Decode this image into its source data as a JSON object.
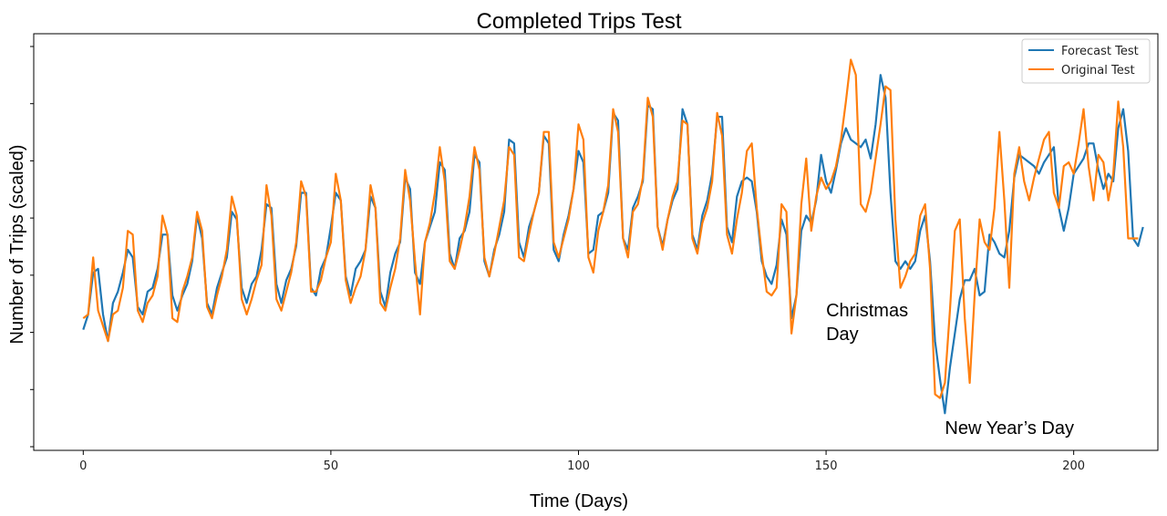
{
  "chart_data": {
    "type": "line",
    "title": "Completed Trips Test",
    "xlabel": "Time (Days)",
    "ylabel": "Number of Trips (scaled)",
    "xlim": [
      -10,
      217
    ],
    "ylim": [
      0,
      1
    ],
    "x_ticks": [
      0,
      50,
      100,
      150,
      200
    ],
    "y_ticks_labeled": false,
    "grid": false,
    "legend_position": "top-right",
    "series": [
      {
        "name": "Forecast Test",
        "color": "#1f77b4",
        "x_start": 0,
        "values": [
          0.26,
          0.3,
          0.41,
          0.42,
          0.3,
          0.23,
          0.33,
          0.36,
          0.41,
          0.47,
          0.45,
          0.32,
          0.3,
          0.36,
          0.37,
          0.42,
          0.51,
          0.51,
          0.35,
          0.31,
          0.35,
          0.38,
          0.44,
          0.56,
          0.5,
          0.33,
          0.3,
          0.37,
          0.41,
          0.45,
          0.57,
          0.55,
          0.37,
          0.33,
          0.38,
          0.4,
          0.47,
          0.59,
          0.58,
          0.38,
          0.33,
          0.39,
          0.42,
          0.48,
          0.62,
          0.62,
          0.37,
          0.35,
          0.42,
          0.45,
          0.53,
          0.62,
          0.6,
          0.4,
          0.35,
          0.42,
          0.44,
          0.47,
          0.61,
          0.58,
          0.36,
          0.32,
          0.41,
          0.46,
          0.49,
          0.66,
          0.63,
          0.41,
          0.38,
          0.49,
          0.53,
          0.57,
          0.7,
          0.68,
          0.46,
          0.42,
          0.5,
          0.52,
          0.57,
          0.72,
          0.7,
          0.44,
          0.4,
          0.47,
          0.51,
          0.57,
          0.76,
          0.75,
          0.49,
          0.45,
          0.53,
          0.57,
          0.62,
          0.77,
          0.75,
          0.47,
          0.44,
          0.51,
          0.56,
          0.63,
          0.73,
          0.7,
          0.46,
          0.47,
          0.56,
          0.57,
          0.62,
          0.83,
          0.81,
          0.5,
          0.47,
          0.58,
          0.61,
          0.65,
          0.85,
          0.84,
          0.53,
          0.48,
          0.55,
          0.6,
          0.63,
          0.84,
          0.8,
          0.51,
          0.47,
          0.56,
          0.6,
          0.67,
          0.82,
          0.82,
          0.53,
          0.49,
          0.61,
          0.65,
          0.66,
          0.65,
          0.57,
          0.44,
          0.4,
          0.38,
          0.43,
          0.55,
          0.51,
          0.29,
          0.35,
          0.52,
          0.56,
          0.54,
          0.6,
          0.72,
          0.65,
          0.62,
          0.68,
          0.75,
          0.79,
          0.76,
          0.75,
          0.74,
          0.76,
          0.71,
          0.8,
          0.93,
          0.87,
          0.62,
          0.44,
          0.42,
          0.44,
          0.42,
          0.44,
          0.52,
          0.56,
          0.44,
          0.23,
          0.13,
          0.04,
          0.16,
          0.25,
          0.34,
          0.39,
          0.39,
          0.42,
          0.35,
          0.36,
          0.51,
          0.49,
          0.46,
          0.45,
          0.52,
          0.66,
          0.72,
          0.71,
          0.7,
          0.69,
          0.67,
          0.7,
          0.72,
          0.74,
          0.58,
          0.52,
          0.58,
          0.67,
          0.69,
          0.71,
          0.75,
          0.75,
          0.68,
          0.63,
          0.67,
          0.65,
          0.79,
          0.84,
          0.73,
          0.5,
          0.48,
          0.53
        ]
      },
      {
        "name": "Original Test",
        "color": "#ff7f0e",
        "x_start": 0,
        "values": [
          0.29,
          0.3,
          0.45,
          0.31,
          0.27,
          0.23,
          0.3,
          0.31,
          0.37,
          0.52,
          0.51,
          0.31,
          0.28,
          0.33,
          0.35,
          0.4,
          0.56,
          0.51,
          0.29,
          0.28,
          0.36,
          0.4,
          0.45,
          0.57,
          0.52,
          0.32,
          0.29,
          0.35,
          0.4,
          0.47,
          0.61,
          0.56,
          0.34,
          0.3,
          0.34,
          0.39,
          0.43,
          0.64,
          0.56,
          0.34,
          0.31,
          0.36,
          0.41,
          0.49,
          0.65,
          0.61,
          0.36,
          0.36,
          0.39,
          0.45,
          0.49,
          0.67,
          0.6,
          0.39,
          0.33,
          0.37,
          0.4,
          0.47,
          0.64,
          0.58,
          0.33,
          0.31,
          0.37,
          0.42,
          0.5,
          0.68,
          0.6,
          0.44,
          0.3,
          0.49,
          0.54,
          0.62,
          0.74,
          0.65,
          0.44,
          0.42,
          0.47,
          0.53,
          0.61,
          0.74,
          0.68,
          0.45,
          0.4,
          0.46,
          0.53,
          0.6,
          0.74,
          0.72,
          0.45,
          0.44,
          0.51,
          0.57,
          0.62,
          0.78,
          0.78,
          0.49,
          0.45,
          0.5,
          0.55,
          0.63,
          0.8,
          0.76,
          0.45,
          0.41,
          0.52,
          0.57,
          0.64,
          0.84,
          0.78,
          0.5,
          0.45,
          0.57,
          0.59,
          0.66,
          0.87,
          0.82,
          0.53,
          0.47,
          0.55,
          0.61,
          0.65,
          0.81,
          0.8,
          0.5,
          0.46,
          0.54,
          0.58,
          0.65,
          0.83,
          0.77,
          0.51,
          0.46,
          0.55,
          0.62,
          0.73,
          0.75,
          0.58,
          0.46,
          0.36,
          0.35,
          0.37,
          0.59,
          0.57,
          0.25,
          0.35,
          0.59,
          0.71,
          0.52,
          0.61,
          0.66,
          0.63,
          0.65,
          0.69,
          0.76,
          0.86,
          0.97,
          0.93,
          0.59,
          0.57,
          0.62,
          0.71,
          0.8,
          0.9,
          0.89,
          0.55,
          0.37,
          0.4,
          0.44,
          0.46,
          0.56,
          0.59,
          0.42,
          0.09,
          0.08,
          0.12,
          0.31,
          0.52,
          0.55,
          0.29,
          0.12,
          0.35,
          0.55,
          0.49,
          0.47,
          0.58,
          0.78,
          0.6,
          0.37,
          0.67,
          0.74,
          0.65,
          0.6,
          0.66,
          0.71,
          0.76,
          0.78,
          0.62,
          0.58,
          0.69,
          0.7,
          0.67,
          0.75,
          0.84,
          0.69,
          0.6,
          0.72,
          0.7,
          0.6,
          0.67,
          0.86,
          0.74,
          0.5,
          0.5,
          0.5
        ]
      }
    ],
    "annotations": [
      {
        "lines": [
          "Christmas",
          "Day"
        ],
        "anchor_x": 150
      },
      {
        "lines": [
          "New Year’s Day"
        ],
        "anchor_x": 174
      }
    ]
  }
}
